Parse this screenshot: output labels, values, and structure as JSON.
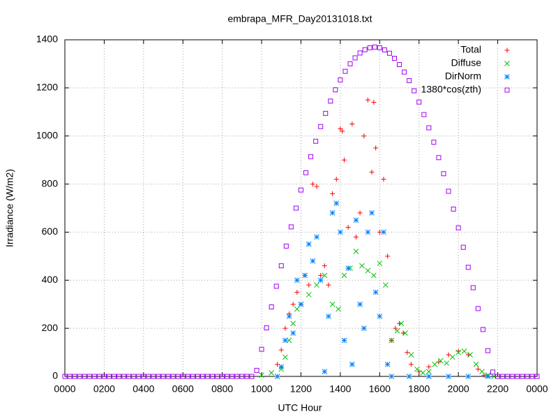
{
  "chart_data": {
    "type": "scatter",
    "title": "embrapa_MFR_Day20131018.txt",
    "x_label": "UTC Hour",
    "y_label": "Irradiance (W/m2)",
    "xlim": [
      0,
      24
    ],
    "ylim": [
      0,
      1400
    ],
    "xticks": [
      {
        "value": 0,
        "label": "0000"
      },
      {
        "value": 2,
        "label": "0200"
      },
      {
        "value": 4,
        "label": "0400"
      },
      {
        "value": 6,
        "label": "0600"
      },
      {
        "value": 8,
        "label": "0800"
      },
      {
        "value": 10,
        "label": "1000"
      },
      {
        "value": 12,
        "label": "1200"
      },
      {
        "value": 14,
        "label": "1400"
      },
      {
        "value": 16,
        "label": "1600"
      },
      {
        "value": 18,
        "label": "1800"
      },
      {
        "value": 20,
        "label": "2000"
      },
      {
        "value": 22,
        "label": "2200"
      },
      {
        "value": 24,
        "label": "0000"
      }
    ],
    "yticks": [
      0,
      200,
      400,
      600,
      800,
      1000,
      1200,
      1400
    ],
    "grid": true,
    "legend": "top-right",
    "series": [
      {
        "name": "Total",
        "color": "#ff0000",
        "marker": "plus",
        "x": [
          10.8,
          11.0,
          11.2,
          11.4,
          11.6,
          11.8,
          12.0,
          12.2,
          12.4,
          12.6,
          12.8,
          13.0,
          13.2,
          13.4,
          13.6,
          13.8,
          14.0,
          14.1,
          14.2,
          14.4,
          14.6,
          14.8,
          15.0,
          15.2,
          15.4,
          15.6,
          15.7,
          15.8,
          16.0,
          16.2,
          16.4,
          16.6,
          16.8,
          17.0,
          17.2,
          17.4,
          17.6,
          18.0,
          18.5,
          19.0,
          19.5,
          20.0,
          20.5,
          21.0,
          21.3
        ],
        "values": [
          50,
          110,
          200,
          260,
          300,
          350,
          300,
          420,
          380,
          800,
          790,
          420,
          460,
          380,
          760,
          820,
          1030,
          1020,
          900,
          620,
          1050,
          580,
          680,
          1000,
          1150,
          850,
          1140,
          950,
          600,
          820,
          500,
          150,
          200,
          220,
          180,
          100,
          50,
          20,
          40,
          60,
          90,
          105,
          90,
          30,
          5
        ]
      },
      {
        "name": "Diffuse",
        "color": "#00c000",
        "marker": "cross",
        "x": [
          10.0,
          10.5,
          11.0,
          11.2,
          11.4,
          11.6,
          11.8,
          12.0,
          12.4,
          12.8,
          13.2,
          13.6,
          13.9,
          14.2,
          14.5,
          14.8,
          15.1,
          15.4,
          15.7,
          16.0,
          16.3,
          16.6,
          16.9,
          17.1,
          17.3,
          17.6,
          17.9,
          18.2,
          18.5,
          18.8,
          19.1,
          19.4,
          19.7,
          20.0,
          20.3,
          20.6,
          20.9,
          21.2,
          21.5,
          21.8
        ],
        "values": [
          5,
          15,
          30,
          80,
          150,
          220,
          280,
          300,
          340,
          380,
          420,
          300,
          280,
          420,
          450,
          520,
          460,
          440,
          420,
          470,
          380,
          150,
          190,
          220,
          180,
          90,
          30,
          15,
          20,
          50,
          65,
          55,
          80,
          100,
          105,
          90,
          50,
          20,
          5,
          0
        ]
      },
      {
        "name": "DirNorm",
        "color": "#0080ff",
        "marker": "star",
        "x": [
          10.8,
          11.0,
          11.2,
          11.4,
          11.6,
          11.8,
          12.0,
          12.2,
          12.4,
          12.6,
          12.8,
          13.0,
          13.2,
          13.4,
          13.6,
          13.8,
          14.0,
          14.2,
          14.4,
          14.6,
          14.8,
          15.0,
          15.2,
          15.4,
          15.6,
          15.8,
          16.0,
          16.2,
          16.4,
          16.6,
          17.5,
          18.5,
          19.5,
          20.5,
          21.5
        ],
        "values": [
          0,
          40,
          150,
          250,
          180,
          400,
          300,
          420,
          550,
          480,
          580,
          400,
          20,
          250,
          680,
          720,
          600,
          150,
          450,
          50,
          650,
          300,
          200,
          600,
          680,
          350,
          250,
          600,
          50,
          0,
          0,
          0,
          0,
          0,
          0
        ]
      },
      {
        "name": "1380*cos(zth)",
        "color": "#a000f0",
        "marker": "square",
        "x": [
          0,
          0.25,
          0.5,
          0.75,
          1,
          1.25,
          1.5,
          1.75,
          2,
          2.25,
          2.5,
          2.75,
          3,
          3.25,
          3.5,
          3.75,
          4,
          4.25,
          4.5,
          4.75,
          5,
          5.25,
          5.5,
          5.75,
          6,
          6.25,
          6.5,
          6.75,
          7,
          7.25,
          7.5,
          7.75,
          8,
          8.25,
          8.5,
          8.75,
          9,
          9.25,
          9.5,
          9.75,
          10,
          10.25,
          10.5,
          10.75,
          11,
          11.25,
          11.5,
          11.75,
          12,
          12.25,
          12.5,
          12.75,
          13,
          13.25,
          13.5,
          13.75,
          14,
          14.25,
          14.5,
          14.75,
          15,
          15.25,
          15.5,
          15.75,
          16,
          16.25,
          16.5,
          16.75,
          17,
          17.25,
          17.5,
          17.75,
          18,
          18.25,
          18.5,
          18.75,
          19,
          19.25,
          19.5,
          19.75,
          20,
          20.25,
          20.5,
          20.75,
          21,
          21.25,
          21.5,
          21.75,
          22,
          22.25,
          22.5,
          22.75,
          23,
          23.25,
          23.5,
          23.75,
          24
        ],
        "values": [
          0,
          0,
          0,
          0,
          0,
          0,
          0,
          0,
          0,
          0,
          0,
          0,
          0,
          0,
          0,
          0,
          0,
          0,
          0,
          0,
          0,
          0,
          0,
          0,
          0,
          0,
          0,
          0,
          0,
          0,
          0,
          0,
          0,
          0,
          0,
          0,
          0,
          0,
          0,
          25,
          113,
          202,
          289,
          375,
          460,
          542,
          622,
          700,
          775,
          847,
          914,
          978,
          1039,
          1094,
          1145,
          1192,
          1233,
          1269,
          1300,
          1325,
          1345,
          1359,
          1367,
          1370,
          1367,
          1358,
          1344,
          1323,
          1297,
          1266,
          1230,
          1188,
          1141,
          1089,
          1034,
          974,
          910,
          843,
          770,
          696,
          618,
          537,
          454,
          369,
          282,
          195,
          107,
          18,
          0,
          0,
          0,
          0,
          0,
          0,
          0,
          0,
          0
        ]
      }
    ]
  }
}
